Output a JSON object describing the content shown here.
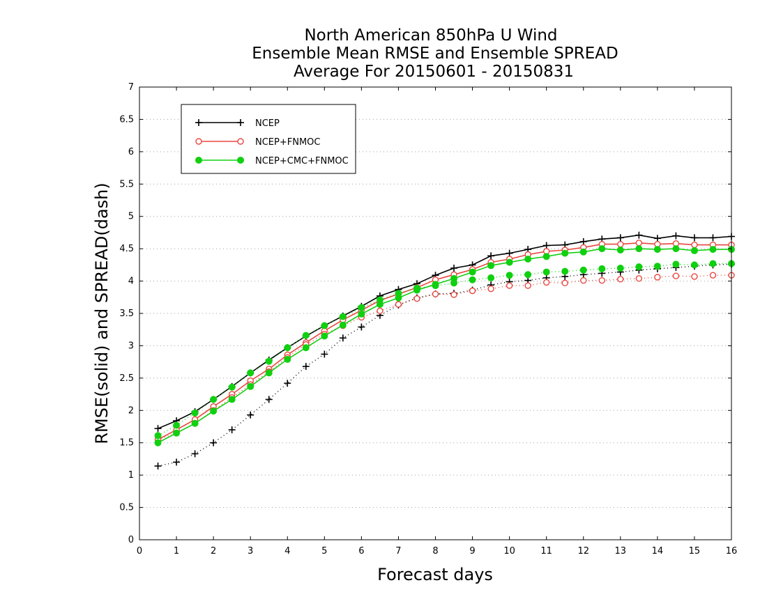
{
  "chart_data": {
    "type": "line",
    "title": [
      "North American 850hPa U Wind",
      "Ensemble Mean RMSE and Ensemble SPREAD",
      "Average For 20150601 - 20150831"
    ],
    "xlabel": "Forecast days",
    "ylabel": "RMSE(solid) and SPREAD(dash)",
    "xlim": [
      0,
      16
    ],
    "ylim": [
      0,
      7
    ],
    "xticks": [
      "0",
      "1",
      "2",
      "3",
      "4",
      "5",
      "6",
      "7",
      "8",
      "9",
      "10",
      "11",
      "12",
      "13",
      "14",
      "15",
      "16"
    ],
    "yticks": [
      "0",
      "0.5",
      "1",
      "1.5",
      "2",
      "2.5",
      "3",
      "3.5",
      "4",
      "4.5",
      "5",
      "5.5",
      "6",
      "6.5",
      "7"
    ],
    "grid": "horizontal-dotted",
    "legend_position": "top-left",
    "x": [
      0.5,
      1,
      1.5,
      2,
      2.5,
      3,
      3.5,
      4,
      4.5,
      5,
      5.5,
      6,
      6.5,
      7,
      7.5,
      8,
      8.5,
      9,
      9.5,
      10,
      10.5,
      11,
      11.5,
      12,
      12.5,
      13,
      13.5,
      14,
      14.5,
      15,
      15.5,
      16
    ],
    "series": [
      {
        "name": "NCEP",
        "color": "#000000",
        "marker": "plus",
        "rmse": [
          1.72,
          1.84,
          1.98,
          2.17,
          2.37,
          2.58,
          2.78,
          2.97,
          3.15,
          3.31,
          3.46,
          3.61,
          3.77,
          3.87,
          3.96,
          4.09,
          4.2,
          4.25,
          4.39,
          4.43,
          4.49,
          4.55,
          4.56,
          4.61,
          4.65,
          4.67,
          4.71,
          4.66,
          4.7,
          4.67,
          4.67,
          4.69
        ],
        "spread": [
          1.14,
          1.2,
          1.33,
          1.5,
          1.7,
          1.93,
          2.17,
          2.42,
          2.68,
          2.87,
          3.12,
          3.29,
          3.47,
          3.63,
          3.74,
          3.8,
          3.81,
          3.86,
          3.94,
          3.99,
          4.01,
          4.05,
          4.07,
          4.1,
          4.12,
          4.14,
          4.17,
          4.19,
          4.21,
          4.23,
          4.25,
          4.26
        ]
      },
      {
        "name": "NCEP+FNMOC",
        "color": "#e8473f",
        "marker": "open-circle",
        "rmse": [
          1.55,
          1.7,
          1.86,
          2.06,
          2.25,
          2.46,
          2.64,
          2.86,
          3.05,
          3.23,
          3.4,
          3.55,
          3.7,
          3.8,
          3.9,
          4.02,
          4.1,
          4.18,
          4.29,
          4.34,
          4.41,
          4.46,
          4.48,
          4.52,
          4.57,
          4.57,
          4.59,
          4.57,
          4.58,
          4.56,
          4.56,
          4.56
        ],
        "spread": [
          1.55,
          1.65,
          1.8,
          2.0,
          2.2,
          2.4,
          2.6,
          2.82,
          3.02,
          3.18,
          3.31,
          3.44,
          3.54,
          3.64,
          3.73,
          3.8,
          3.79,
          3.85,
          3.88,
          3.93,
          3.93,
          3.98,
          3.97,
          4.01,
          4.01,
          4.03,
          4.04,
          4.06,
          4.08,
          4.07,
          4.09,
          4.09
        ]
      },
      {
        "name": "NCEP+CMC+FNMOC",
        "color": "#10d010",
        "marker": "filled-circle",
        "rmse": [
          1.5,
          1.65,
          1.8,
          1.99,
          2.17,
          2.37,
          2.58,
          2.79,
          2.97,
          3.15,
          3.32,
          3.49,
          3.64,
          3.74,
          3.86,
          3.95,
          4.04,
          4.14,
          4.24,
          4.29,
          4.34,
          4.38,
          4.43,
          4.45,
          4.5,
          4.48,
          4.5,
          4.49,
          4.5,
          4.47,
          4.49,
          4.49
        ],
        "spread": [
          1.61,
          1.77,
          1.96,
          2.17,
          2.36,
          2.58,
          2.76,
          2.97,
          3.16,
          3.31,
          3.45,
          3.59,
          3.71,
          3.81,
          3.89,
          3.93,
          3.97,
          4.02,
          4.05,
          4.09,
          4.1,
          4.14,
          4.15,
          4.17,
          4.19,
          4.2,
          4.22,
          4.23,
          4.26,
          4.25,
          4.27,
          4.27
        ]
      }
    ]
  }
}
